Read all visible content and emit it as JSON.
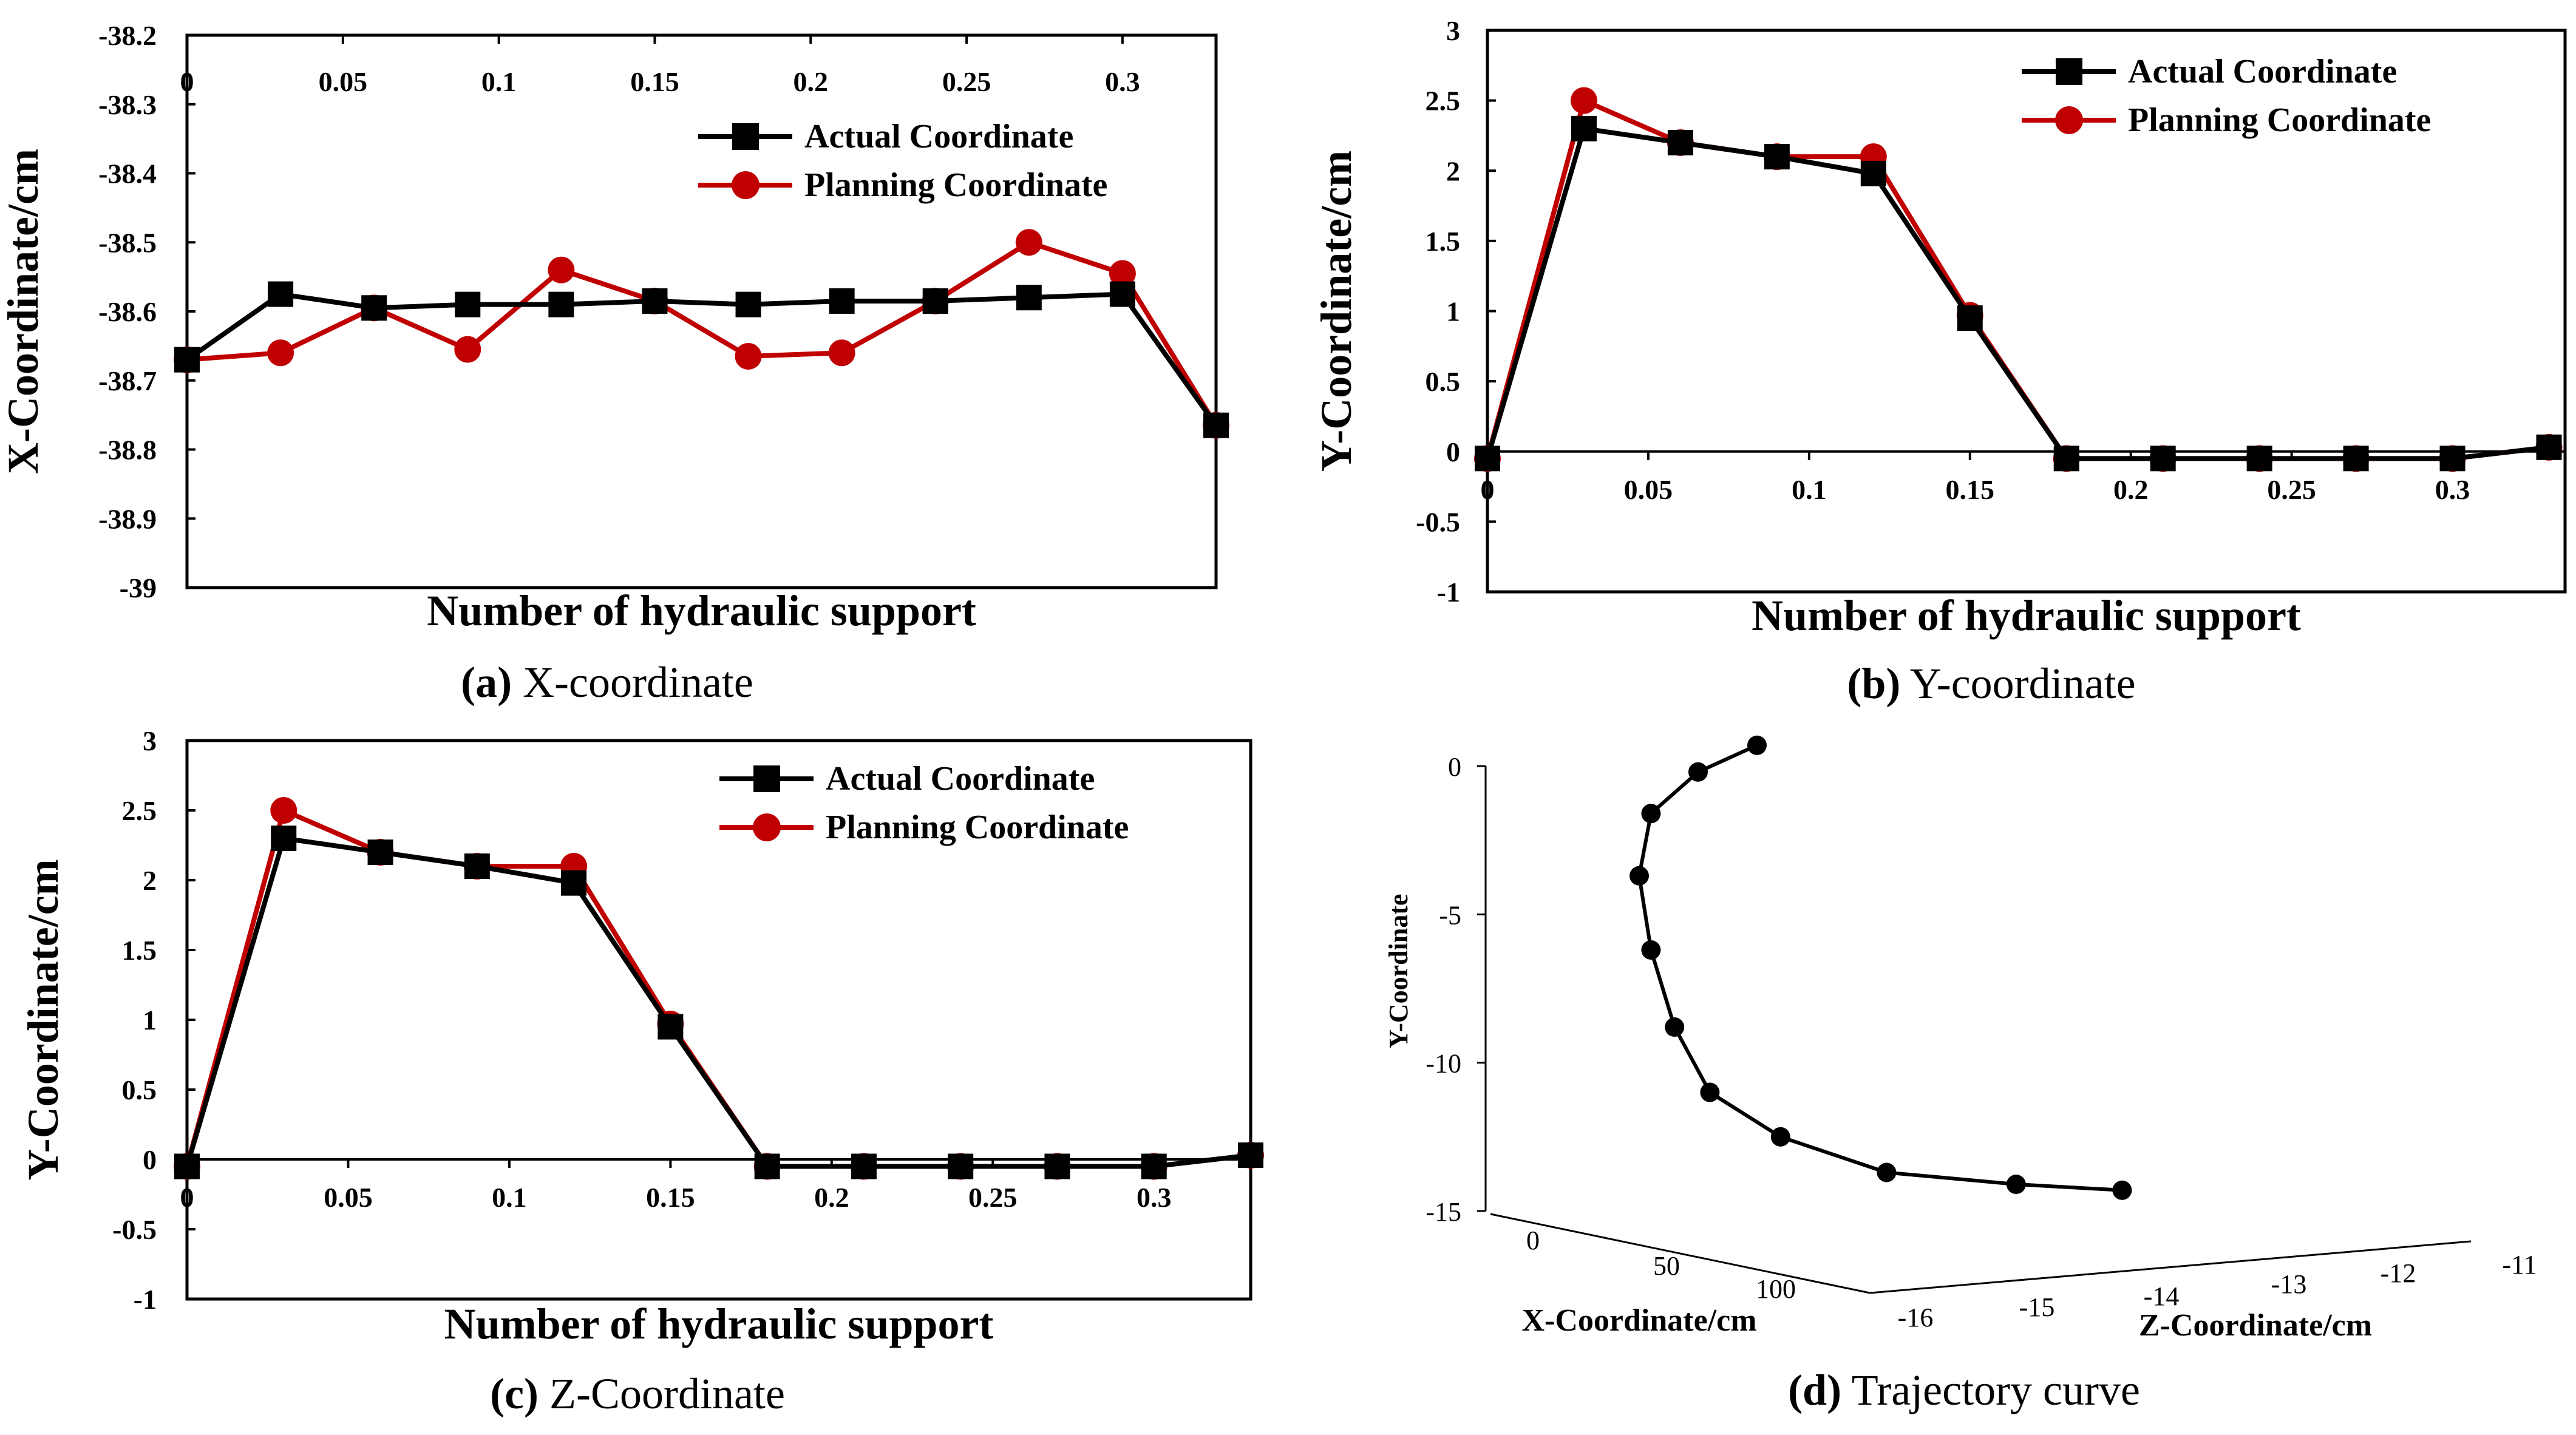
{
  "colors": {
    "actual": "#000000",
    "planning": "#c00000",
    "frame": "#000000"
  },
  "chart_data": [
    {
      "type": "line",
      "caption_letter": "(a)",
      "caption_text": " X-coordinate",
      "xlabel": "Number of hydraulic support",
      "ylabel": "X-Coordinate/cm",
      "xlim": [
        0,
        0.33
      ],
      "ylim": [
        -39,
        -38.2
      ],
      "y_reversed": true,
      "x_ticks": [
        "0",
        "0.05",
        "0.1",
        "0.15",
        "0.2",
        "0.25",
        "0.3"
      ],
      "x_tick_values": [
        0,
        0.05,
        0.1,
        0.15,
        0.2,
        0.25,
        0.3
      ],
      "y_ticks": [
        "-38.2",
        "-38.3",
        "-38.4",
        "-38.5",
        "-38.6",
        "-38.7",
        "-38.8",
        "-38.9",
        "-39"
      ],
      "y_tick_values": [
        -38.2,
        -38.3,
        -38.4,
        -38.5,
        -38.6,
        -38.7,
        -38.8,
        -38.9,
        -39
      ],
      "legend_position": "top-right",
      "x": [
        0,
        0.03,
        0.06,
        0.09,
        0.12,
        0.15,
        0.18,
        0.21,
        0.24,
        0.27,
        0.3,
        0.33
      ],
      "series": [
        {
          "name": "Actual Coordinate",
          "marker": "square",
          "values": [
            -38.67,
            -38.575,
            -38.595,
            -38.59,
            -38.59,
            -38.585,
            -38.59,
            -38.585,
            -38.585,
            -38.58,
            -38.575,
            -38.765
          ]
        },
        {
          "name": "Planning Coordinate",
          "marker": "circle",
          "values": [
            -38.67,
            -38.66,
            -38.595,
            -38.655,
            -38.54,
            -38.585,
            -38.665,
            -38.66,
            -38.585,
            -38.5,
            -38.545,
            -38.765
          ]
        }
      ]
    },
    {
      "type": "line",
      "caption_letter": "(b)",
      "caption_text": " Y-coordinate",
      "xlabel": "Number of hydraulic support",
      "ylabel": "Y-Coordinate/cm",
      "xlim": [
        0,
        0.335
      ],
      "ylim": [
        -1,
        3
      ],
      "x_ticks": [
        "0",
        "0.05",
        "0.1",
        "0.15",
        "0.2",
        "0.25",
        "0.3"
      ],
      "x_tick_values": [
        0,
        0.05,
        0.1,
        0.15,
        0.2,
        0.25,
        0.3
      ],
      "y_ticks": [
        "3",
        "2.5",
        "2",
        "1.5",
        "1",
        "0.5",
        "0",
        "-0.5",
        "-1"
      ],
      "y_tick_values": [
        3,
        2.5,
        2,
        1.5,
        1,
        0.5,
        0,
        -0.5,
        -1
      ],
      "legend_position": "top-right",
      "x": [
        0,
        0.03,
        0.06,
        0.09,
        0.12,
        0.15,
        0.18,
        0.21,
        0.24,
        0.27,
        0.3,
        0.33
      ],
      "series": [
        {
          "name": "Actual Coordinate",
          "marker": "square",
          "values": [
            -0.05,
            2.3,
            2.2,
            2.1,
            1.98,
            0.95,
            -0.05,
            -0.05,
            -0.05,
            -0.05,
            -0.05,
            0.03
          ]
        },
        {
          "name": "Planning Coordinate",
          "marker": "circle",
          "values": [
            -0.05,
            2.5,
            2.2,
            2.1,
            2.1,
            0.97,
            -0.05,
            -0.05,
            -0.05,
            -0.05,
            -0.05,
            0.03
          ]
        }
      ]
    },
    {
      "type": "line",
      "caption_letter": "(c)",
      "caption_text": " Z-Coordinate",
      "xlabel": "Number of hydraulic support",
      "ylabel": "Y-Coordinate/cm",
      "xlim": [
        0,
        0.33
      ],
      "ylim": [
        -1,
        3
      ],
      "x_ticks": [
        "0",
        "0.05",
        "0.1",
        "0.15",
        "0.2",
        "0.25",
        "0.3"
      ],
      "x_tick_values": [
        0,
        0.05,
        0.1,
        0.15,
        0.2,
        0.25,
        0.3
      ],
      "y_ticks": [
        "3",
        "2.5",
        "2",
        "1.5",
        "1",
        "0.5",
        "0",
        "-0.5",
        "-1"
      ],
      "y_tick_values": [
        3,
        2.5,
        2,
        1.5,
        1,
        0.5,
        0,
        -0.5,
        -1
      ],
      "legend_position": "top-right",
      "x": [
        0,
        0.03,
        0.06,
        0.09,
        0.12,
        0.15,
        0.18,
        0.21,
        0.24,
        0.27,
        0.3,
        0.33
      ],
      "series": [
        {
          "name": "Actual Coordinate",
          "marker": "square",
          "values": [
            -0.05,
            2.3,
            2.2,
            2.1,
            1.98,
            0.95,
            -0.05,
            -0.05,
            -0.05,
            -0.05,
            -0.05,
            0.03
          ]
        },
        {
          "name": "Planning Coordinate",
          "marker": "circle",
          "values": [
            -0.05,
            2.5,
            2.2,
            2.1,
            2.1,
            0.97,
            -0.05,
            -0.05,
            -0.05,
            -0.05,
            -0.05,
            0.03
          ]
        }
      ]
    },
    {
      "type": "line3d",
      "caption_letter": "(d)",
      "caption_text": " Trajectory curve",
      "xlabel": "X-Coordinate/cm",
      "ylabel": "Y-Coordinate",
      "zlabel": "Z-Coordinate/cm",
      "y_ticks": [
        "0",
        "-5",
        "-10",
        "-15"
      ],
      "x_ticks": [
        "0",
        "50",
        "100"
      ],
      "z_ticks": [
        "-16",
        "-15",
        "-14",
        "-13",
        "-12",
        "-11"
      ],
      "points": [
        {
          "z": -11.9,
          "y": -14.3
        },
        {
          "z": -12.8,
          "y": -14.1
        },
        {
          "z": -13.9,
          "y": -13.7
        },
        {
          "z": -14.8,
          "y": -12.5
        },
        {
          "z": -15.4,
          "y": -11.0
        },
        {
          "z": -15.7,
          "y": -8.8
        },
        {
          "z": -15.9,
          "y": -6.2
        },
        {
          "z": -16.0,
          "y": -3.7
        },
        {
          "z": -15.9,
          "y": -1.6
        },
        {
          "z": -15.5,
          "y": -0.2
        },
        {
          "z": -15.0,
          "y": 0.7
        }
      ]
    }
  ]
}
